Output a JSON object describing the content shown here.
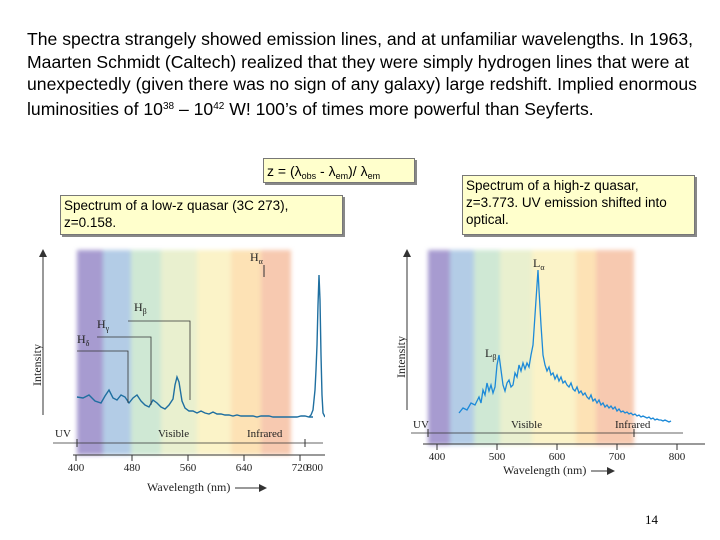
{
  "paragraph": {
    "part1": "The spectra strangely showed emission lines, and at unfamiliar wavelengths.  In 1963, Maarten Schmidt (Caltech) realized that they were simply hydrogen lines that were at unexpectedly (given there was no sign of any galaxy) large redshift.  Implied enormous luminosities of 10",
    "exp1": "38",
    "part2": " – 10",
    "exp2": "42",
    "part3": " W!  100’s of times more powerful than Seyferts."
  },
  "formula": {
    "z_eq": "z = (",
    "lambda1": "λ",
    "sub_obs": "obs",
    "minus": " - ",
    "lambda2": "λ",
    "sub_em1": "em",
    "divide": ")/ ",
    "lambda3": "λ",
    "sub_em2": "em"
  },
  "low_z_label": "Spectrum of a low-z quasar (3C 273), z=0.158.",
  "high_z_label": "Spectrum of a high-z quasar, z=3.773. UV emission shifted into optical.",
  "left_plot": {
    "ylabel": "Intensity",
    "xlabel": "Wavelength (nm)",
    "ticks": [
      "400",
      "480",
      "560",
      "640",
      "720",
      "800"
    ],
    "lines": {
      "ha": "H",
      "ha_sub": "α",
      "hb": "H",
      "hb_sub": "β",
      "hg": "H",
      "hg_sub": "γ",
      "hd": "H",
      "hd_sub": "δ"
    },
    "regions": {
      "uv": "UV",
      "visible": "Visible",
      "infrared": "Infrared"
    }
  },
  "right_plot": {
    "ylabel": "Intensity",
    "xlabel": "Wavelength (nm)",
    "ticks": [
      "400",
      "500",
      "600",
      "700",
      "800"
    ],
    "lines": {
      "la": "L",
      "la_sub": "α",
      "lb": "L",
      "lb_sub": "β"
    },
    "regions": {
      "uv": "UV",
      "visible": "Visible",
      "infrared": "Infrared"
    }
  },
  "page_number": "14"
}
